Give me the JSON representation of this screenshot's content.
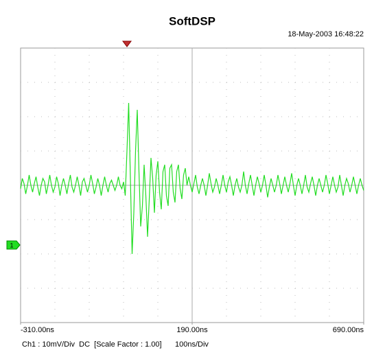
{
  "chart_data": {
    "type": "line",
    "title": "SoftDSP",
    "timestamp": "18-May-2003 16:48:22",
    "status": "Ch1 : 10mV/Div  DC  [Scale Factor : 1.00]",
    "timebase": "100ns/Div",
    "channel_marker": {
      "label": "1",
      "value": -17.4
    },
    "trigger_x": 0,
    "xlim": [
      -310,
      690
    ],
    "ylim": [
      -40,
      40
    ],
    "xticks": [
      {
        "value": -310,
        "label": "-310.00ns"
      },
      {
        "value": 190,
        "label": "190.00ns"
      },
      {
        "value": 690,
        "label": "690.00ns"
      }
    ],
    "grid": {
      "x_divisions": 10,
      "y_divisions": 8
    },
    "x": [
      -310,
      -305,
      -300,
      -295,
      -290,
      -285,
      -280,
      -275,
      -270,
      -265,
      -260,
      -255,
      -250,
      -245,
      -240,
      -235,
      -230,
      -225,
      -220,
      -215,
      -210,
      -205,
      -200,
      -195,
      -190,
      -185,
      -180,
      -175,
      -170,
      -165,
      -160,
      -155,
      -150,
      -145,
      -140,
      -135,
      -130,
      -125,
      -120,
      -115,
      -110,
      -105,
      -100,
      -95,
      -90,
      -85,
      -80,
      -75,
      -70,
      -65,
      -60,
      -55,
      -50,
      -45,
      -40,
      -35,
      -30,
      -25,
      -20,
      -15,
      -10,
      -5,
      0,
      5,
      10,
      15,
      20,
      25,
      30,
      35,
      40,
      45,
      50,
      55,
      60,
      65,
      70,
      75,
      80,
      85,
      90,
      95,
      100,
      105,
      110,
      115,
      120,
      125,
      130,
      135,
      140,
      145,
      150,
      155,
      160,
      165,
      170,
      175,
      180,
      185,
      190,
      195,
      200,
      205,
      210,
      215,
      220,
      225,
      230,
      235,
      240,
      245,
      250,
      255,
      260,
      265,
      270,
      275,
      280,
      285,
      290,
      295,
      300,
      305,
      310,
      315,
      320,
      325,
      330,
      335,
      340,
      345,
      350,
      355,
      360,
      365,
      370,
      375,
      380,
      385,
      390,
      395,
      400,
      405,
      410,
      415,
      420,
      425,
      430,
      435,
      440,
      445,
      450,
      455,
      460,
      465,
      470,
      475,
      480,
      485,
      490,
      495,
      500,
      505,
      510,
      515,
      520,
      525,
      530,
      535,
      540,
      545,
      550,
      555,
      560,
      565,
      570,
      575,
      580,
      585,
      590,
      595,
      600,
      605,
      610,
      615,
      620,
      625,
      630,
      635,
      640,
      645,
      650,
      655,
      660,
      665,
      670,
      675,
      680,
      685,
      690
    ],
    "series": [
      {
        "name": "Ch1",
        "color": "#22dd22",
        "values": [
          -1,
          2,
          0.5,
          -2.5,
          0,
          3,
          0,
          -2,
          0.5,
          2.5,
          -0.5,
          -3,
          0,
          2,
          1,
          -2.5,
          0,
          3,
          0,
          -2,
          -0.5,
          2.5,
          0.5,
          -3,
          0,
          2,
          0,
          -2.5,
          0.5,
          3,
          -0.5,
          -2,
          0,
          2.5,
          0,
          -3,
          1,
          2,
          0,
          -2,
          0,
          3,
          0.5,
          -2.5,
          -0.5,
          2,
          0,
          -3,
          0,
          2.5,
          0,
          -2,
          0.5,
          1.5,
          0,
          -1.5,
          0,
          2.5,
          0,
          -1,
          1,
          -3,
          10,
          24,
          2,
          -20,
          -8,
          10,
          22,
          4,
          -12,
          -6,
          6,
          -3,
          -15,
          -4,
          8,
          2,
          -8,
          3,
          7,
          -2,
          -7,
          4,
          6,
          -3,
          -6,
          5,
          6,
          -2,
          -5,
          4,
          6,
          -1,
          -4,
          3,
          5,
          0,
          2.5,
          0,
          -2,
          0.5,
          3,
          -0.5,
          -2.5,
          0,
          2,
          0,
          -3,
          0,
          3.5,
          0.5,
          -2,
          -0.5,
          2,
          0,
          -2.5,
          0,
          3,
          0,
          -2,
          1,
          2.5,
          0,
          -3,
          0,
          2,
          -0.5,
          -2,
          0,
          4,
          0,
          -2.5,
          0.5,
          3,
          0,
          -3,
          0,
          2.5,
          0.5,
          -2,
          0,
          3,
          0,
          -3.5,
          -0.5,
          2,
          0,
          -2,
          0,
          3,
          0.5,
          -2.5,
          0,
          2.5,
          0,
          -2,
          0.5,
          3.5,
          0,
          -3,
          0,
          2,
          0,
          -2.5,
          0,
          3,
          -0.5,
          -2,
          0.5,
          2.5,
          0,
          -3,
          0,
          2,
          0,
          -2,
          0,
          3,
          0.5,
          -2.5,
          0,
          2.5,
          0,
          -2,
          -0.5,
          3,
          0,
          -3,
          0,
          2,
          0.5,
          -2,
          0,
          2.5,
          0,
          -2.5,
          0,
          2,
          0,
          -1.5
        ]
      }
    ]
  }
}
